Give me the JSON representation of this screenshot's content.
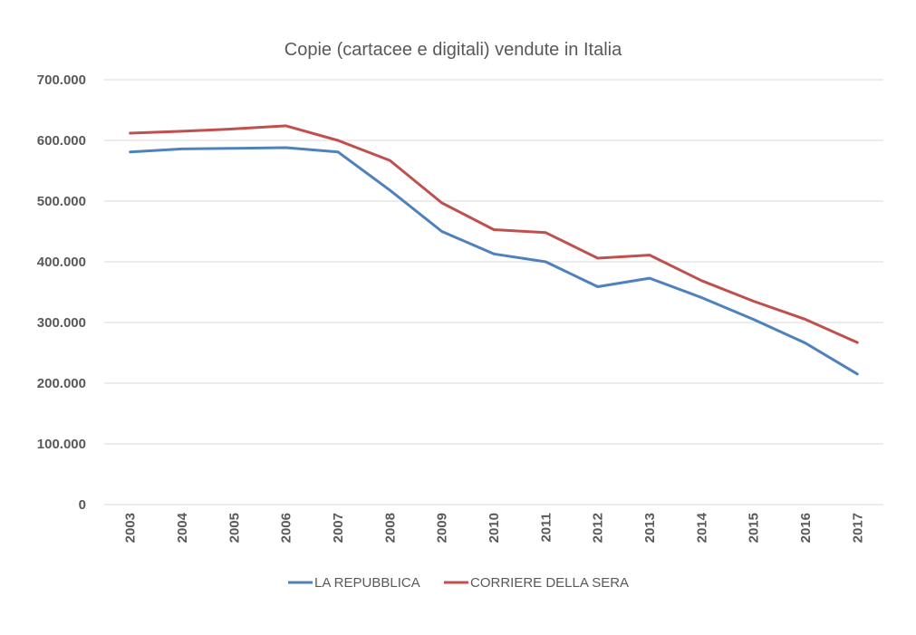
{
  "chart_data": {
    "type": "line",
    "title": "Copie (cartacee e digitali) vendute in Italia",
    "xlabel": "",
    "ylabel": "",
    "categories": [
      "2003",
      "2004",
      "2005",
      "2006",
      "2007",
      "2008",
      "2009",
      "2010",
      "2011",
      "2012",
      "2013",
      "2014",
      "2015",
      "2016",
      "2017"
    ],
    "ylim": [
      0,
      700000
    ],
    "yticks": [
      0,
      100000,
      200000,
      300000,
      400000,
      500000,
      600000,
      700000
    ],
    "ytick_labels": [
      "0",
      "100.000",
      "200.000",
      "300.000",
      "400.000",
      "500.000",
      "600.000",
      "700.000"
    ],
    "grid": true,
    "legend_position": "bottom",
    "series": [
      {
        "name": "LA REPUBBLICA",
        "color": "#4f81bd",
        "values": [
          581000,
          586000,
          587000,
          588000,
          581000,
          518000,
          450000,
          413000,
          400000,
          359000,
          373000,
          341000,
          305000,
          266000,
          215000
        ]
      },
      {
        "name": "CORRIERE DELLA SERA",
        "color": "#c0504d",
        "values": [
          612000,
          615000,
          619000,
          624000,
          600000,
          567000,
          497000,
          453000,
          448000,
          406000,
          411000,
          369000,
          335000,
          305000,
          267000
        ]
      }
    ]
  }
}
